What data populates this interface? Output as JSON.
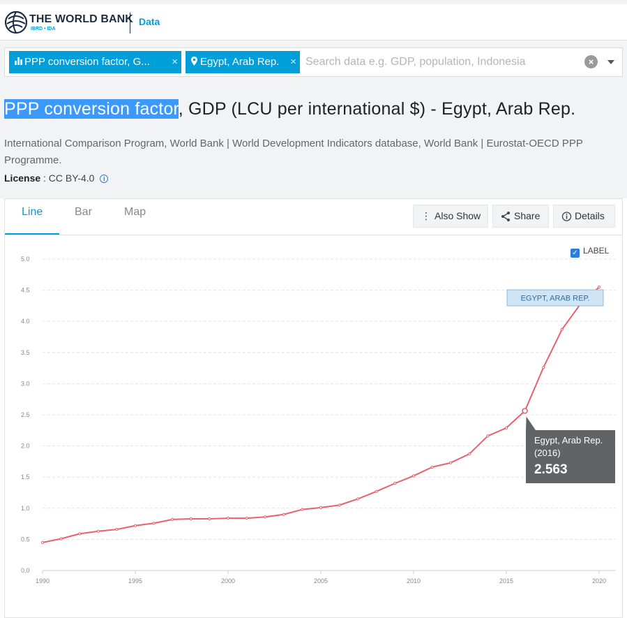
{
  "header": {
    "brand": "THE WORLD BANK",
    "brand_sub": "IBRD • IDA",
    "section": "Data"
  },
  "search": {
    "chips": [
      {
        "label": "PPP conversion factor, G...",
        "icon": "bar-chart-icon"
      },
      {
        "label": "Egypt, Arab Rep.",
        "icon": "location-pin-icon"
      }
    ],
    "chip_close": "×",
    "placeholder": "Search data e.g. GDP, population, Indonesia",
    "clear": "×"
  },
  "indicator": {
    "title_highlight": "PPP conversion factor",
    "title_rest": ", GDP (LCU per international $) - Egypt, Arab Rep.",
    "source": "International Comparison Program, World Bank | World Development Indicators database, World Bank | Eurostat-OECD PPP Programme.",
    "license_label": "License",
    "license_value": " : CC BY-4.0"
  },
  "tabs": [
    "Line",
    "Bar",
    "Map"
  ],
  "toolbar": {
    "also_show": "Also Show",
    "share": "Share",
    "details": "Details"
  },
  "label_toggle": "LABEL",
  "colors": {
    "accent": "#009fda",
    "line": "#e8616b",
    "tooltip_bg": "#616366"
  },
  "chart_data": {
    "type": "line",
    "series": [
      {
        "name": "EGYPT, ARAB REP.",
        "x": [
          1990,
          1991,
          1992,
          1993,
          1994,
          1995,
          1996,
          1997,
          1998,
          1999,
          2000,
          2001,
          2002,
          2003,
          2004,
          2005,
          2006,
          2007,
          2008,
          2009,
          2010,
          2011,
          2012,
          2013,
          2014,
          2015,
          2016,
          2017,
          2018,
          2019,
          2020
        ],
        "values": [
          0.45,
          0.51,
          0.59,
          0.63,
          0.66,
          0.72,
          0.76,
          0.82,
          0.83,
          0.83,
          0.84,
          0.84,
          0.86,
          0.9,
          0.98,
          1.01,
          1.05,
          1.15,
          1.27,
          1.4,
          1.52,
          1.66,
          1.73,
          1.87,
          2.16,
          2.29,
          2.563,
          3.26,
          3.87,
          4.28,
          4.55
        ]
      }
    ],
    "xlim": [
      1990,
      2020
    ],
    "ylim": [
      0,
      5.0
    ],
    "yticks": [
      "0.0",
      "0.5",
      "1.0",
      "1.5",
      "2.0",
      "2.5",
      "3.0",
      "3.5",
      "4.0",
      "4.5",
      "5.0"
    ],
    "xticks": [
      "1990",
      "1995",
      "2000",
      "2005",
      "2010",
      "2015",
      "2020"
    ],
    "grid": true,
    "tooltip": {
      "country": "Egypt, Arab Rep.",
      "year_label": "(2016)",
      "year": 2016,
      "value": "2.563"
    }
  }
}
